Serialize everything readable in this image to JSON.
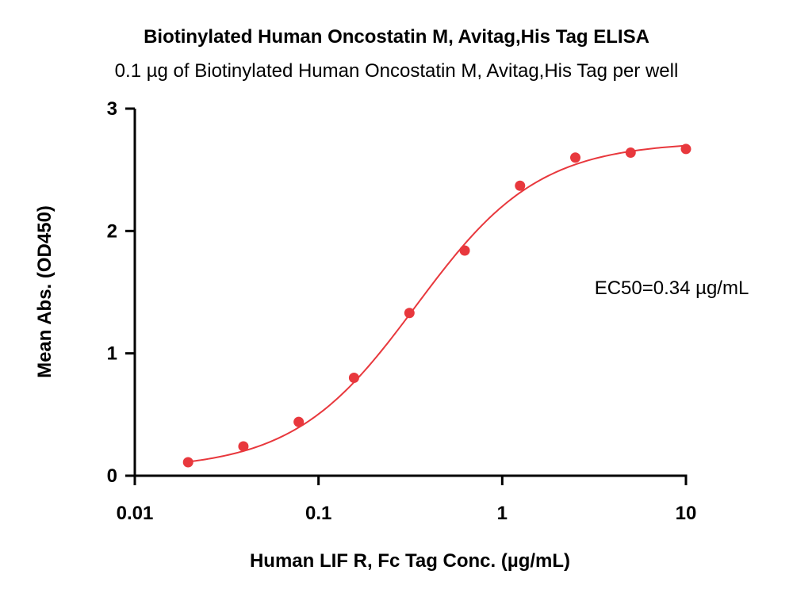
{
  "chart_data": {
    "type": "scatter",
    "title": "Biotinylated Human Oncostatin M, Avitag,His Tag ELISA",
    "subtitle": "0.1 µg of Biotinylated Human Oncostatin M, Avitag,His Tag per well",
    "xlabel": "Human LIF R, Fc Tag Conc. (µg/mL)",
    "ylabel": "Mean Abs. (OD450)",
    "x_scale": "log",
    "xlim": [
      0.01,
      10
    ],
    "ylim": [
      0,
      3
    ],
    "x_ticks": [
      0.01,
      0.1,
      1,
      10
    ],
    "x_tick_labels": [
      "0.01",
      "0.1",
      "1",
      "10"
    ],
    "y_ticks": [
      0,
      1,
      2,
      3
    ],
    "y_tick_labels": [
      "0",
      "1",
      "2",
      "3"
    ],
    "grid": false,
    "annotation": "EC50=0.34 µg/mL",
    "series": [
      {
        "x": [
          0.0195,
          0.039,
          0.078,
          0.156,
          0.3125,
          0.625,
          1.25,
          2.5,
          5,
          10
        ],
        "y": [
          0.11,
          0.24,
          0.44,
          0.8,
          1.33,
          1.84,
          2.37,
          2.6,
          2.64,
          2.67
        ],
        "fit": {
          "model": "4PL",
          "bottom": 0.05,
          "top": 2.73,
          "ec50": 0.34,
          "hill": 1.3
        }
      }
    ],
    "colors": {
      "series": "#e8383d",
      "axis": "#000000"
    }
  }
}
